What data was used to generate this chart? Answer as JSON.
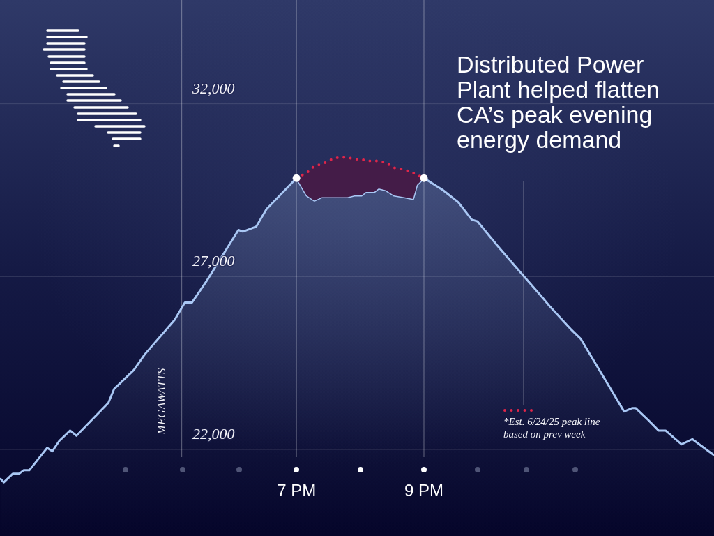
{
  "chart_data": {
    "type": "area",
    "title": "Distributed Power Plant helped flatten CA’s peak evening energy demand",
    "ylabel": "MEGAWATTS",
    "xlim": [
      2.35,
      13.55
    ],
    "xticks": [
      {
        "value": 7,
        "label": "7 PM"
      },
      {
        "value": 9,
        "label": "9 PM"
      }
    ],
    "ylim": [
      19500,
      35000
    ],
    "yticks": [
      {
        "value": 22000,
        "label": "22,000"
      },
      {
        "value": 27000,
        "label": "27,000"
      },
      {
        "value": 32000,
        "label": "32,000"
      }
    ],
    "grid": "y",
    "legend": "bottom right",
    "ref_lines": [
      {
        "axis": "x",
        "value": 5.2
      },
      {
        "axis": "x",
        "value": 7
      },
      {
        "axis": "x",
        "value": 9
      }
    ],
    "series": [
      {
        "color": "#a9c7f4",
        "x": [
          2.36,
          2.41,
          2.55,
          2.65,
          2.72,
          2.81,
          3.09,
          3.17,
          3.28,
          3.45,
          3.55,
          4.05,
          4.14,
          4.45,
          4.62,
          5.09,
          5.25,
          5.36,
          5.6,
          6.09,
          6.16,
          6.37,
          6.53,
          7,
          7.16,
          7.28,
          7.4,
          7.8,
          7.91,
          8.02,
          8.09,
          8.22,
          8.29,
          8.4,
          8.53,
          8.69,
          8.83,
          8.89,
          9,
          9.3,
          9.54,
          9.75,
          9.84,
          10.15,
          10.55,
          10.88,
          10.97,
          11.32,
          11.46,
          12.14,
          12.27,
          12.32,
          12.52,
          12.68,
          12.79,
          13.04,
          13.21,
          13.54
        ],
        "values": [
          21150,
          21050,
          21300,
          21300,
          21400,
          21400,
          22050,
          21950,
          22250,
          22550,
          22400,
          23350,
          23750,
          24300,
          24750,
          25750,
          26250,
          26250,
          26900,
          28350,
          28300,
          28450,
          28950,
          29850,
          29350,
          29200,
          29300,
          29300,
          29350,
          29350,
          29450,
          29450,
          29550,
          29500,
          29350,
          29300,
          29250,
          29650,
          29850,
          29500,
          29150,
          28650,
          28600,
          27900,
          27050,
          26350,
          26150,
          25450,
          25200,
          23100,
          23200,
          23200,
          22850,
          22550,
          22550,
          22150,
          22300,
          21850
        ]
      },
      {
        "type": "line",
        "name": "*Est. 6/24/25 peak line based on prev week",
        "color": "#e0264a",
        "line_style": "dotted",
        "x": [
          7,
          7.16,
          7.28,
          7.4,
          7.56,
          7.66,
          7.8,
          7.91,
          8.02,
          8.09,
          8.22,
          8.29,
          8.4,
          8.53,
          8.69,
          8.83,
          8.89,
          9
        ],
        "values": [
          29850,
          30000,
          30200,
          30250,
          30400,
          30450,
          30450,
          30400,
          30400,
          30350,
          30350,
          30350,
          30300,
          30150,
          30100,
          30000,
          29950,
          29850
        ],
        "lower": [
          29850,
          29350,
          29200,
          29300,
          29300,
          29300,
          29300,
          29350,
          29350,
          29450,
          29450,
          29550,
          29500,
          29350,
          29300,
          29250,
          29650,
          29850
        ],
        "upper": [
          29850,
          30000,
          30200,
          30250,
          30400,
          30450,
          30450,
          30400,
          30400,
          30350,
          30350,
          30350,
          30300,
          30150,
          30100,
          30000,
          29950,
          29850
        ]
      },
      {
        "type": "scatter",
        "color": "#ffffff",
        "marker": "circle",
        "x": [
          7,
          9
        ],
        "values": [
          29850,
          29850
        ]
      }
    ]
  }
}
